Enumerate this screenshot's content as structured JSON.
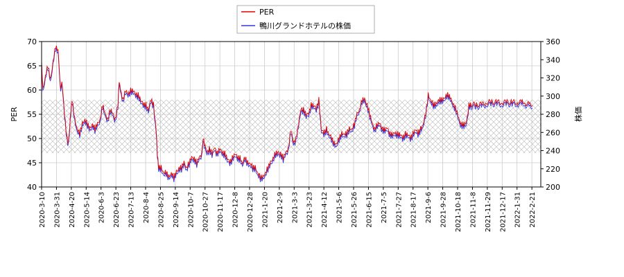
{
  "chart_data": {
    "type": "line",
    "title": "",
    "xlabel": "",
    "ylabel_left": "PER",
    "ylabel_right": "株価",
    "ylim_left": [
      40,
      70
    ],
    "ylim_right": [
      200,
      360
    ],
    "yticks_left": [
      "40",
      "45",
      "50",
      "55",
      "60",
      "65",
      "70"
    ],
    "yticks_right": [
      "200",
      "220",
      "240",
      "260",
      "280",
      "300",
      "320",
      "340",
      "360"
    ],
    "x_ticks": [
      "2020-3-10",
      "2020-3-31",
      "2020-4-20",
      "2020-5-14",
      "2020-6-3",
      "2020-6-23",
      "2020-7-13",
      "2020-8-4",
      "2020-8-25",
      "2020-9-14",
      "2020-10-7",
      "2020-10-27",
      "2020-11-17",
      "2020-12-8",
      "2020-12-28",
      "2021-1-20",
      "2021-2-9",
      "2021-3-3",
      "2021-3-23",
      "2021-4-12",
      "2021-5-6",
      "2021-5-26",
      "2021-6-15",
      "2021-7-5",
      "2021-7-27",
      "2021-8-17",
      "2021-9-6",
      "2021-9-28",
      "2021-10-18",
      "2021-11-8",
      "2021-11-29",
      "2021-12-17",
      "2022-1-31",
      "2022-2-21"
    ],
    "grid": true,
    "legend_position": "top-center",
    "hatched_band_left": [
      47,
      58
    ],
    "series": [
      {
        "name": "PER",
        "axis": "left",
        "color": "#dd0000",
        "values": [
          [
            0,
            66
          ],
          [
            1,
            60
          ],
          [
            3,
            63
          ],
          [
            5,
            65
          ],
          [
            7,
            62
          ],
          [
            9,
            66
          ],
          [
            11,
            69
          ],
          [
            13,
            68
          ],
          [
            15,
            60
          ],
          [
            16,
            62
          ],
          [
            18,
            55
          ],
          [
            20,
            50
          ],
          [
            21,
            49
          ],
          [
            22,
            52
          ],
          [
            23,
            56
          ],
          [
            24,
            58
          ],
          [
            26,
            54
          ],
          [
            28,
            52
          ],
          [
            30,
            51
          ],
          [
            32,
            53
          ],
          [
            34,
            54
          ],
          [
            36,
            53
          ],
          [
            38,
            52
          ],
          [
            40,
            53
          ],
          [
            42,
            52
          ],
          [
            44,
            53
          ],
          [
            46,
            54
          ],
          [
            48,
            57
          ],
          [
            49,
            56
          ],
          [
            50,
            55
          ],
          [
            52,
            54
          ],
          [
            54,
            56
          ],
          [
            56,
            55
          ],
          [
            58,
            54
          ],
          [
            60,
            57
          ],
          [
            61,
            62
          ],
          [
            62,
            60
          ],
          [
            64,
            58
          ],
          [
            66,
            60
          ],
          [
            68,
            59
          ],
          [
            70,
            60
          ],
          [
            72,
            60
          ],
          [
            74,
            59
          ],
          [
            76,
            59
          ],
          [
            78,
            58
          ],
          [
            80,
            57
          ],
          [
            82,
            57
          ],
          [
            84,
            56
          ],
          [
            86,
            58
          ],
          [
            88,
            57
          ],
          [
            90,
            52
          ],
          [
            91,
            47
          ],
          [
            92,
            44
          ],
          [
            94,
            44
          ],
          [
            96,
            43
          ],
          [
            98,
            43
          ],
          [
            100,
            42
          ],
          [
            102,
            43
          ],
          [
            104,
            42
          ],
          [
            106,
            43
          ],
          [
            108,
            44
          ],
          [
            110,
            44
          ],
          [
            112,
            45
          ],
          [
            114,
            44
          ],
          [
            116,
            45
          ],
          [
            118,
            46
          ],
          [
            120,
            46
          ],
          [
            122,
            45
          ],
          [
            124,
            46
          ],
          [
            126,
            47
          ],
          [
            127,
            50
          ],
          [
            128,
            49
          ],
          [
            130,
            47
          ],
          [
            132,
            48
          ],
          [
            134,
            47
          ],
          [
            136,
            48
          ],
          [
            138,
            47
          ],
          [
            140,
            48
          ],
          [
            142,
            47
          ],
          [
            144,
            47
          ],
          [
            146,
            46
          ],
          [
            148,
            45
          ],
          [
            150,
            46
          ],
          [
            152,
            47
          ],
          [
            154,
            46
          ],
          [
            156,
            46
          ],
          [
            158,
            45
          ],
          [
            160,
            46
          ],
          [
            162,
            45
          ],
          [
            164,
            45
          ],
          [
            166,
            44
          ],
          [
            168,
            44
          ],
          [
            170,
            43
          ],
          [
            172,
            42
          ],
          [
            174,
            42
          ],
          [
            176,
            43
          ],
          [
            178,
            44
          ],
          [
            180,
            45
          ],
          [
            182,
            46
          ],
          [
            184,
            47
          ],
          [
            186,
            47
          ],
          [
            188,
            47
          ],
          [
            190,
            46
          ],
          [
            192,
            47
          ],
          [
            194,
            48
          ],
          [
            196,
            52
          ],
          [
            198,
            49
          ],
          [
            200,
            50
          ],
          [
            202,
            53
          ],
          [
            204,
            56
          ],
          [
            206,
            56
          ],
          [
            208,
            55
          ],
          [
            210,
            55
          ],
          [
            212,
            57
          ],
          [
            214,
            57
          ],
          [
            216,
            56
          ],
          [
            218,
            58
          ],
          [
            220,
            52
          ],
          [
            222,
            51
          ],
          [
            224,
            52
          ],
          [
            226,
            51
          ],
          [
            228,
            50
          ],
          [
            230,
            49
          ],
          [
            232,
            49
          ],
          [
            234,
            50
          ],
          [
            236,
            51
          ],
          [
            238,
            51
          ],
          [
            240,
            51
          ],
          [
            242,
            52
          ],
          [
            244,
            52
          ],
          [
            246,
            53
          ],
          [
            248,
            55
          ],
          [
            250,
            56
          ],
          [
            252,
            58
          ],
          [
            254,
            58
          ],
          [
            256,
            57
          ],
          [
            258,
            55
          ],
          [
            260,
            53
          ],
          [
            262,
            52
          ],
          [
            264,
            53
          ],
          [
            266,
            53
          ],
          [
            268,
            52
          ],
          [
            270,
            52
          ],
          [
            272,
            52
          ],
          [
            274,
            51
          ],
          [
            276,
            51
          ],
          [
            278,
            51
          ],
          [
            280,
            51
          ],
          [
            282,
            51
          ],
          [
            284,
            50
          ],
          [
            286,
            51
          ],
          [
            288,
            51
          ],
          [
            290,
            50
          ],
          [
            292,
            51
          ],
          [
            294,
            52
          ],
          [
            296,
            51
          ],
          [
            298,
            52
          ],
          [
            300,
            53
          ],
          [
            302,
            55
          ],
          [
            304,
            59
          ],
          [
            306,
            58
          ],
          [
            308,
            57
          ],
          [
            310,
            57
          ],
          [
            312,
            58
          ],
          [
            314,
            58
          ],
          [
            316,
            58
          ],
          [
            318,
            59
          ],
          [
            320,
            59
          ],
          [
            322,
            58
          ],
          [
            324,
            57
          ],
          [
            326,
            56
          ],
          [
            328,
            54
          ],
          [
            330,
            53
          ],
          [
            332,
            53
          ],
          [
            334,
            53
          ],
          [
            336,
            57
          ],
          [
            338,
            57
          ],
          [
            342,
            57
          ],
          [
            346,
            57
          ],
          [
            350,
            57.5
          ],
          [
            354,
            57.5
          ],
          [
            358,
            57.5
          ],
          [
            362,
            57.5
          ],
          [
            366,
            57.5
          ],
          [
            370,
            57.5
          ],
          [
            374,
            57.5
          ],
          [
            378,
            57.5
          ],
          [
            380,
            57.3
          ],
          [
            384,
            57
          ],
          [
            386,
            56.8
          ]
        ]
      },
      {
        "name": "鴨川グランドホテルの株価",
        "axis": "right",
        "color": "#3333dd",
        "offset": -0.5
      }
    ]
  }
}
